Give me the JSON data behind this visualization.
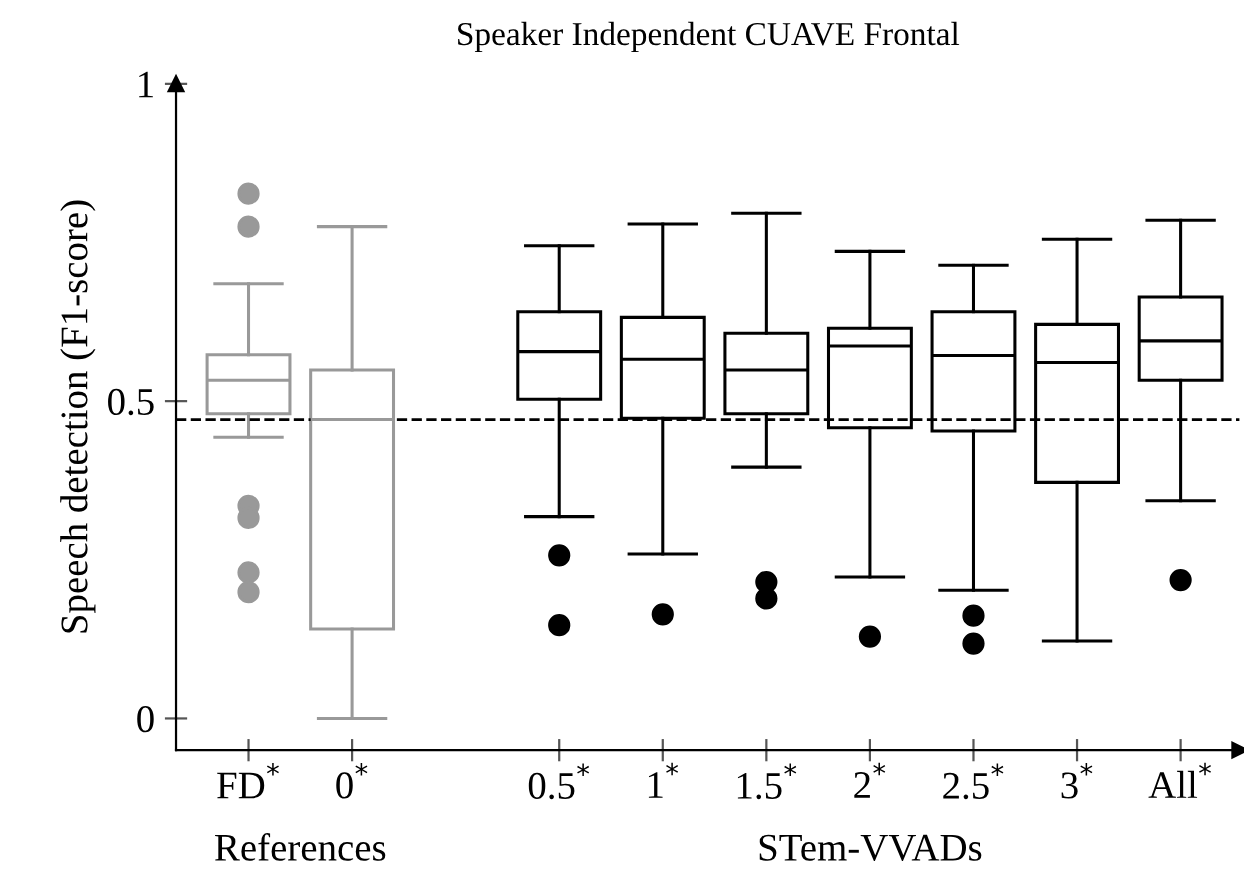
{
  "chart_data": {
    "type": "box",
    "title": "Speaker Independent CUAVE Frontal",
    "ylabel": "Speech detection (F1-score)",
    "categories": [
      "FD$^{*}$",
      "0$^{*}$",
      null,
      "0.5$^{*}$",
      "1$^{*}$",
      "1.5$^{*}$",
      "2$^{*}$",
      "2.5$^{*}$",
      "3$^{*}$",
      "All$^{*}$"
    ],
    "series": [
      {
        "color": "#999999",
        "boxes": [
          {
            "low": 0.443,
            "q1": 0.48,
            "median": 0.533,
            "q3": 0.573,
            "high": 0.685,
            "outliers": [
              0.827,
              0.775,
              0.335,
              0.316,
              0.23,
              0.199
            ]
          },
          {
            "low": 0.0,
            "q1": 0.141,
            "median": 0.471,
            "q3": 0.549,
            "high": 0.775
          },
          null,
          null,
          null,
          null,
          null,
          null,
          null,
          null
        ]
      },
      {
        "color": "#000000",
        "boxes": [
          null,
          null,
          null,
          {
            "low": 0.318,
            "q1": 0.503,
            "median": 0.578,
            "q3": 0.641,
            "high": 0.745,
            "outliers": [
              0.257,
              0.147
            ]
          },
          {
            "low": 0.259,
            "q1": 0.473,
            "median": 0.566,
            "q3": 0.632,
            "high": 0.779,
            "outliers": [
              0.164
            ]
          },
          {
            "low": 0.396,
            "q1": 0.48,
            "median": 0.549,
            "q3": 0.607,
            "high": 0.796,
            "outliers": [
              0.215,
              0.189
            ]
          },
          {
            "low": 0.223,
            "q1": 0.458,
            "median": 0.587,
            "q3": 0.615,
            "high": 0.736,
            "outliers": [
              0.129
            ]
          },
          {
            "low": 0.202,
            "q1": 0.453,
            "median": 0.572,
            "q3": 0.641,
            "high": 0.714,
            "outliers": [
              0.162,
              0.118
            ]
          },
          {
            "low": 0.122,
            "q1": 0.372,
            "median": 0.561,
            "q3": 0.621,
            "high": 0.755
          },
          {
            "low": 0.343,
            "q1": 0.533,
            "median": 0.595,
            "q3": 0.664,
            "high": 0.785,
            "outliers": [
              0.218
            ]
          }
        ]
      }
    ],
    "ylim": [
      -0.05,
      1.0
    ],
    "yticks": [
      0,
      0.5,
      1
    ],
    "ref_lines": [
      {
        "axis": "y",
        "value": 0.471,
        "line_style": "dashed",
        "color": "#000000"
      }
    ],
    "annotations": [
      "References",
      "STem-VVADs"
    ]
  }
}
